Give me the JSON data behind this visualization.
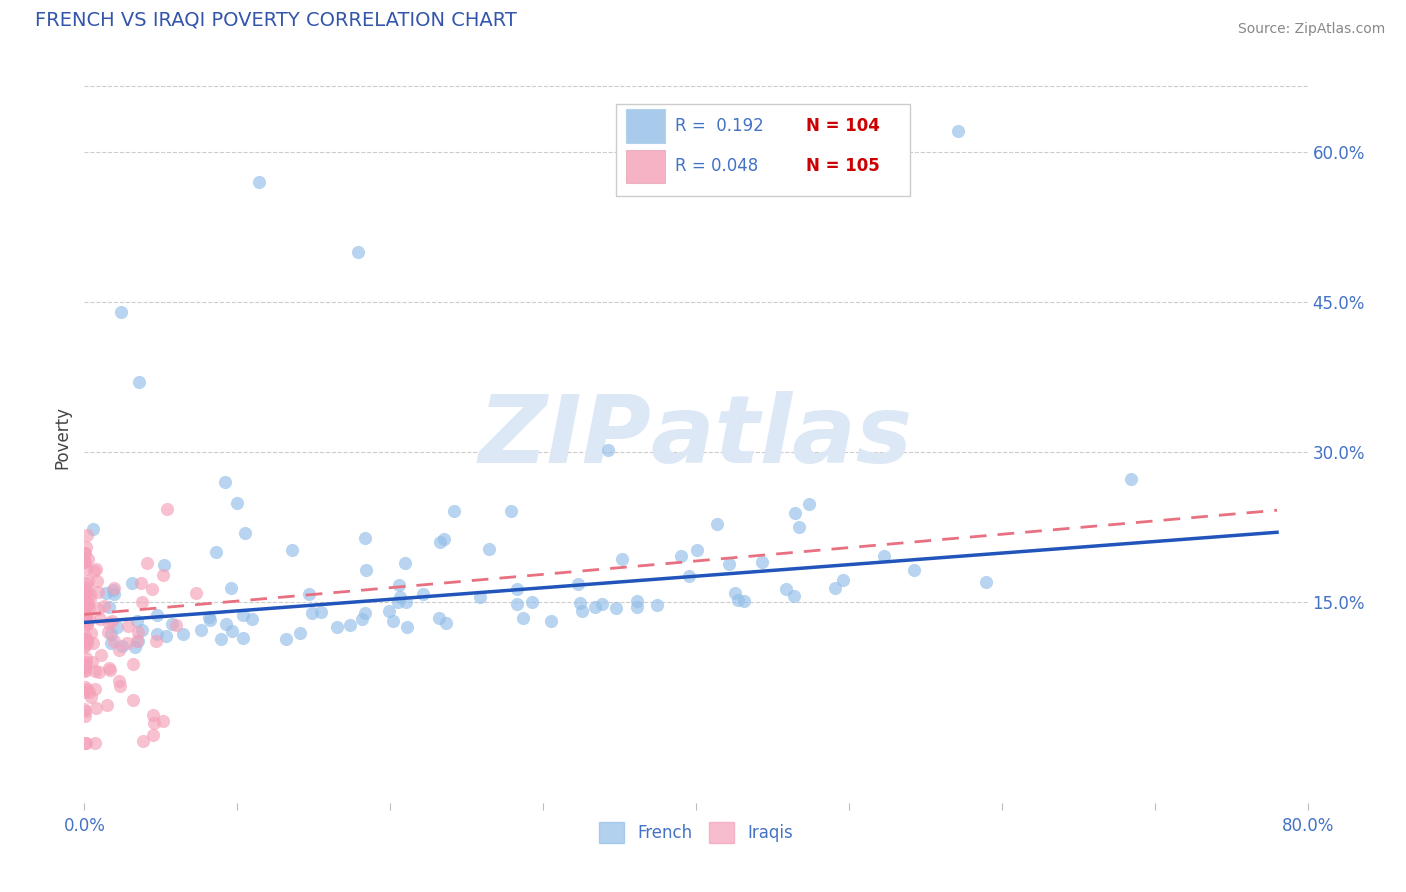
{
  "title": "FRENCH VS IRAQI POVERTY CORRELATION CHART",
  "source": "Source: ZipAtlas.com",
  "ylabel": "Poverty",
  "xlim": [
    0.0,
    0.8
  ],
  "ylim": [
    -0.05,
    0.68
  ],
  "xtick_positions": [
    0.0,
    0.1,
    0.2,
    0.3,
    0.4,
    0.5,
    0.6,
    0.7,
    0.8
  ],
  "xtick_labels": [
    "0.0%",
    "",
    "",
    "",
    "",
    "",
    "",
    "",
    "80.0%"
  ],
  "ytick_labels": [
    "15.0%",
    "30.0%",
    "45.0%",
    "60.0%"
  ],
  "ytick_values": [
    0.15,
    0.3,
    0.45,
    0.6
  ],
  "french_color": "#92bee8",
  "iraqi_color": "#f4a0b8",
  "french_line_color": "#2255bb",
  "iraqi_line_color": "#e87080",
  "legend_r_french": "0.192",
  "legend_n_french": "104",
  "legend_r_iraqi": "0.048",
  "legend_n_iraqi": "105",
  "title_color": "#3355aa",
  "title_fontsize": 14,
  "axis_label_color": "#444444",
  "tick_color": "#4472c4",
  "n_color": "#cc0000",
  "grid_color": "#cccccc",
  "watermark_color": "#dce8f5",
  "background": "#ffffff"
}
